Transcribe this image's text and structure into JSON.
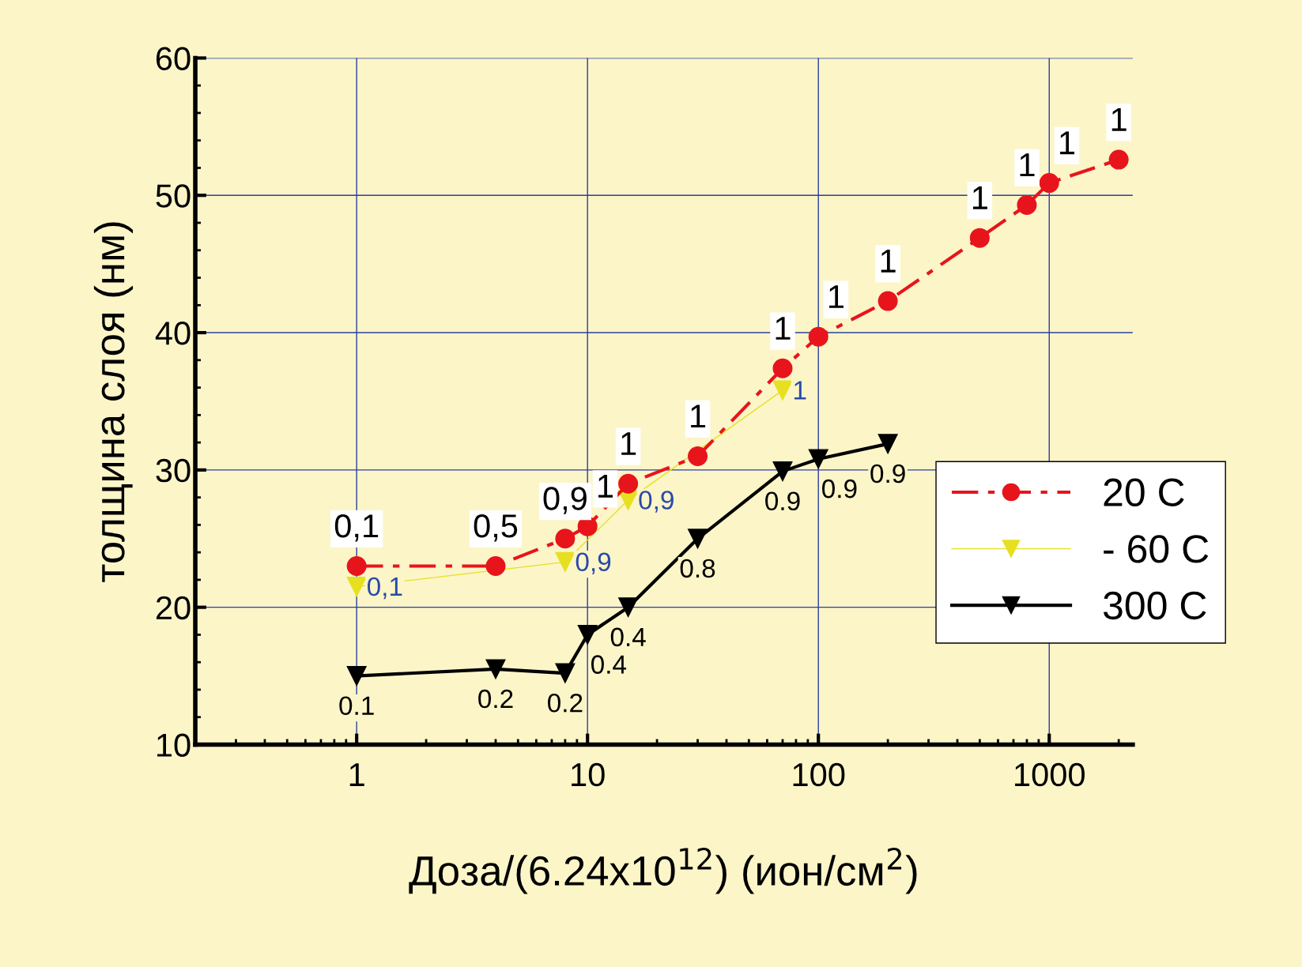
{
  "chart_data": {
    "type": "line",
    "xlabel": "Доза/(6.24x10$^{12}$) (ион/см$^{2}$)",
    "ylabel": "толщина слоя (нм)",
    "log": "x",
    "xlim": [
      0.2,
      2300
    ],
    "xticks": [
      1,
      10,
      100,
      1000
    ],
    "ylim": [
      10,
      60
    ],
    "yticks": [
      10,
      20,
      30,
      40,
      50,
      60
    ],
    "grid": true,
    "legend": "right",
    "series": [
      {
        "name": "20 C",
        "color": "#e8141c",
        "marker": "circle",
        "line_style": "dashed",
        "x": [
          1,
          4,
          8,
          10,
          15,
          30,
          70,
          100,
          200,
          500,
          800,
          1000,
          2000
        ],
        "values": [
          23,
          23,
          25,
          25.9,
          29,
          31,
          37.4,
          39.7,
          42.3,
          46.9,
          49.3,
          50.9,
          52.6
        ]
      },
      {
        "name": "- 60 C",
        "color": "#e6e020",
        "marker": "triangle",
        "line_style": "solid",
        "x": [
          1,
          8,
          15,
          70
        ],
        "values": [
          21.5,
          23.3,
          27.8,
          35.8
        ]
      },
      {
        "name": "300 C",
        "color": "#000000",
        "marker": "triangle",
        "line_style": "solid",
        "x": [
          1,
          4,
          8,
          10,
          15,
          30,
          70,
          100,
          200
        ],
        "values": [
          15,
          15.5,
          15.2,
          18,
          20,
          25,
          29.9,
          30.8,
          31.9
        ]
      }
    ],
    "annotations": [
      {
        "text": "0,1",
        "x": 1,
        "y": 23
      },
      {
        "text": "0,5",
        "x": 4,
        "y": 23
      },
      {
        "text": "0,9",
        "x": 8,
        "y": 25
      },
      {
        "text": "1",
        "x": 10,
        "y": 25.9
      },
      {
        "text": "1",
        "x": 15,
        "y": 29
      },
      {
        "text": "1",
        "x": 30,
        "y": 31
      },
      {
        "text": "1",
        "x": 70,
        "y": 37.4
      },
      {
        "text": "1",
        "x": 100,
        "y": 39.7
      },
      {
        "text": "1",
        "x": 200,
        "y": 42.3
      },
      {
        "text": "1",
        "x": 500,
        "y": 46.9
      },
      {
        "text": "1",
        "x": 800,
        "y": 49.3
      },
      {
        "text": "1",
        "x": 1000,
        "y": 50.9
      },
      {
        "text": "1",
        "x": 2000,
        "y": 52.6
      },
      {
        "text": "0,1",
        "x": 1,
        "y": 21.5
      },
      {
        "text": "0,9",
        "x": 8,
        "y": 23.3
      },
      {
        "text": "0,9",
        "x": 15,
        "y": 27.8
      },
      {
        "text": "1",
        "x": 70,
        "y": 35.8
      },
      {
        "text": "0.1",
        "x": 1,
        "y": 15
      },
      {
        "text": "0.2",
        "x": 4,
        "y": 15.5
      },
      {
        "text": "0.2",
        "x": 8,
        "y": 15.2
      },
      {
        "text": "0.4",
        "x": 10,
        "y": 18
      },
      {
        "text": "0.4",
        "x": 15,
        "y": 20
      },
      {
        "text": "0.8",
        "x": 30,
        "y": 25
      },
      {
        "text": "0.9",
        "x": 70,
        "y": 29.9
      },
      {
        "text": "0.9",
        "x": 100,
        "y": 30.8
      },
      {
        "text": "0.9",
        "x": 200,
        "y": 31.9
      }
    ]
  }
}
